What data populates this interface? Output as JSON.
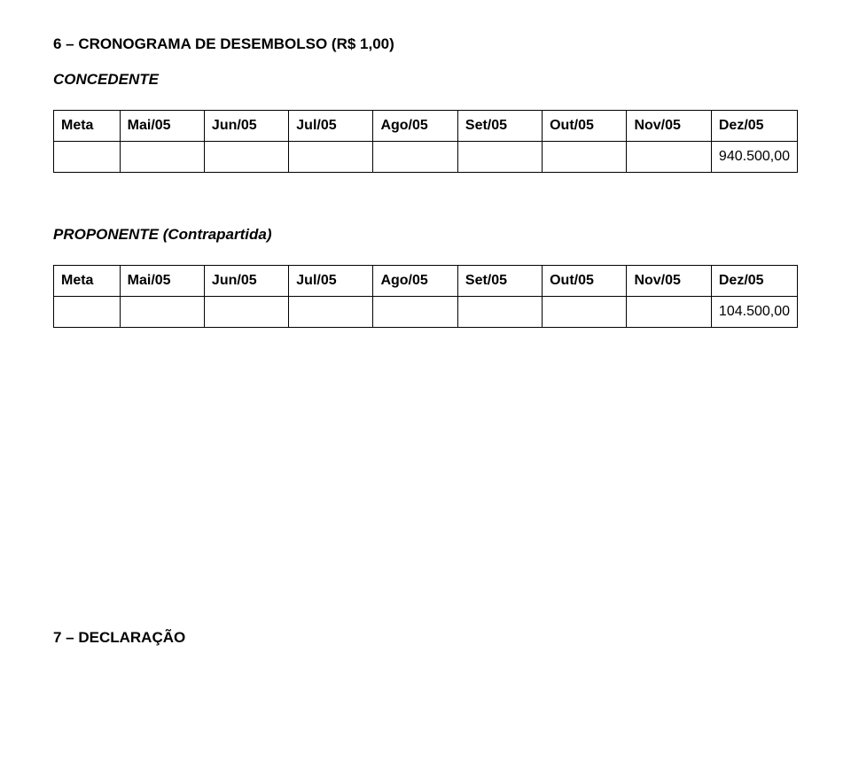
{
  "section6": {
    "heading": "6 – CRONOGRAMA DE DESEMBOLSO (R$ 1,00)",
    "concedente": {
      "label": "CONCEDENTE",
      "headers": [
        "Meta",
        "Mai/05",
        "Jun/05",
        "Jul/05",
        "Ago/05",
        "Set/05",
        "Out/05",
        "Nov/05",
        "Dez/05"
      ],
      "row_value": "940.500,00"
    },
    "proponente": {
      "label": "PROPONENTE (Contrapartida)",
      "headers": [
        "Meta",
        "Mai/05",
        "Jun/05",
        "Jul/05",
        "Ago/05",
        "Set/05",
        "Out/05",
        "Nov/05",
        "Dez/05"
      ],
      "row_value": "104.500,00"
    }
  },
  "section7": {
    "heading": "7 – DECLARAÇÃO"
  }
}
